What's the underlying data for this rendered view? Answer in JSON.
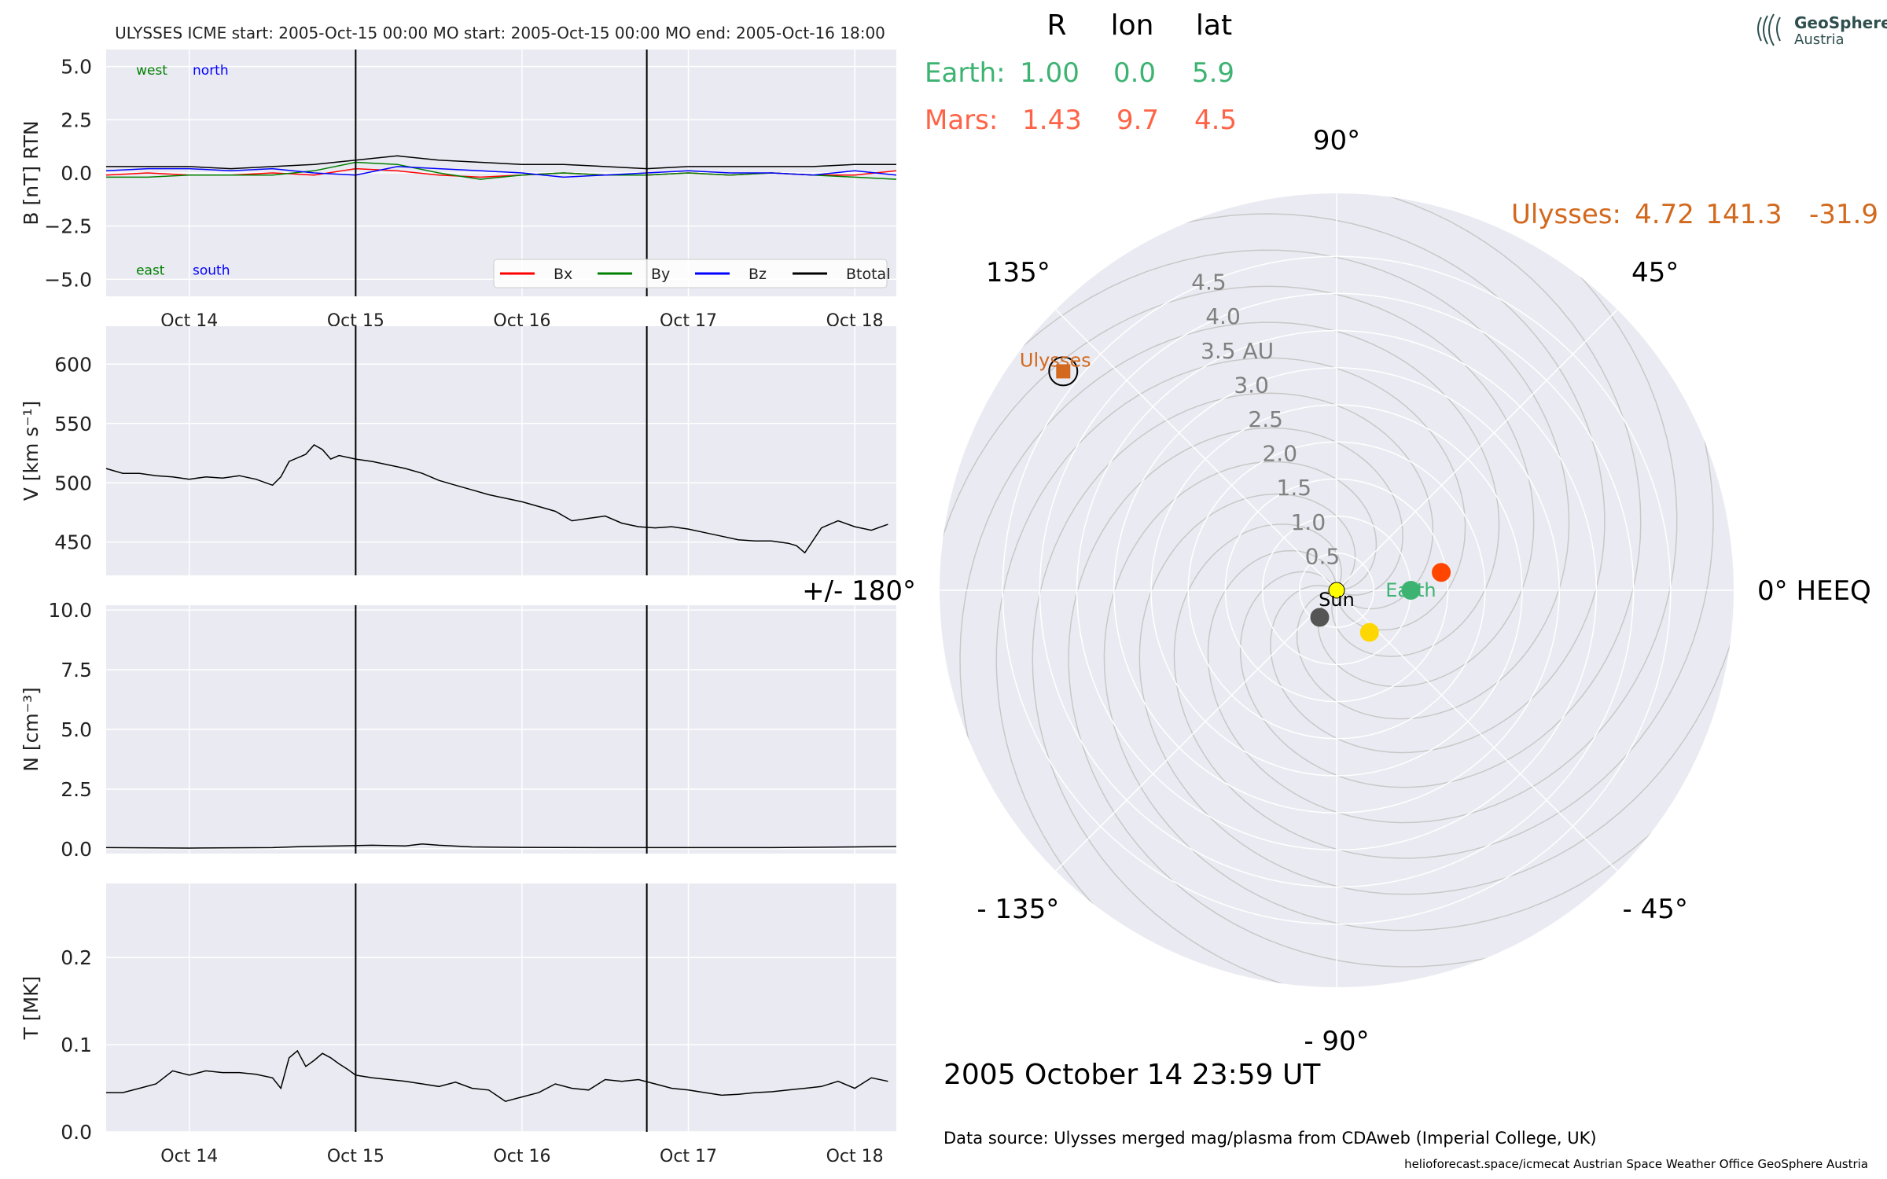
{
  "header": {
    "title": "ULYSSES    ICME start: 2005-Oct-15 00:00   MO start: 2005-Oct-15 00:00   MO end: 2005-Oct-16 18:00"
  },
  "logo": {
    "line1": "GeoSphere",
    "line2": "Austria"
  },
  "position_table": {
    "columns": [
      "R",
      "lon",
      "lat"
    ],
    "rows": [
      {
        "label": "Earth:",
        "R": "1.00",
        "lon": "0.0",
        "lat": "5.9",
        "color": "#3cb371"
      },
      {
        "label": "Mars:",
        "R": "1.43",
        "lon": "9.7",
        "lat": "4.5",
        "color": "#ff6347"
      }
    ],
    "spacecraft": {
      "label": "Ulysses:",
      "R": "4.72",
      "lon": "141.3",
      "lat": "-31.9",
      "color": "#d2691e"
    }
  },
  "timestamp": "2005 October 14  23:59 UT",
  "source": "Data source: Ulysses merged mag/plasma from CDAweb (Imperial College, UK)",
  "footer": "helioforecast.space/icmecat   Austrian Space Weather Office   GeoSphere Austria",
  "colors": {
    "panel_bg": "#eaeaf2",
    "grid": "#ffffff",
    "event_line": "#000000",
    "bx": "#ff0000",
    "by": "#008000",
    "bz": "#0000ff",
    "btotal": "#000000",
    "ulysses": "#d2691e",
    "earth": "#3cb371",
    "mars": "#ff4500",
    "venus": "#ffd700",
    "mercury": "#555555",
    "sun": "#ffff00"
  },
  "chart_data": [
    {
      "type": "line",
      "ylabel": "B [nT] RTN",
      "ylim": [
        -5.8,
        5.8
      ],
      "yticks": [
        5.0,
        2.5,
        0.0,
        -2.5,
        -5.0
      ],
      "ytick_labels": [
        "5.0",
        "2.5",
        "0.0",
        "−2.5",
        "−5.0"
      ],
      "xlim": [
        0,
        4.75
      ],
      "xticks": [
        0.5,
        1.5,
        2.5,
        3.5,
        4.5
      ],
      "xtick_labels": [
        "Oct 14",
        "Oct 15",
        "Oct 16",
        "Oct 17",
        "Oct 18"
      ],
      "event_lines": [
        1.5,
        3.25
      ],
      "annotations": [
        {
          "text": "west",
          "x": 0.18,
          "y": 4.8,
          "color": "#008000"
        },
        {
          "text": "north",
          "x": 0.52,
          "y": 4.8,
          "color": "#0000ff"
        },
        {
          "text": "east",
          "x": 0.18,
          "y": -4.6,
          "color": "#008000"
        },
        {
          "text": "south",
          "x": 0.52,
          "y": -4.6,
          "color": "#0000ff"
        }
      ],
      "legend": {
        "position": "lower-right",
        "entries": [
          "Bx",
          "By",
          "Bz",
          "Btotal"
        ]
      },
      "x": [
        0.0,
        0.25,
        0.5,
        0.75,
        1.0,
        1.25,
        1.5,
        1.75,
        2.0,
        2.25,
        2.5,
        2.75,
        3.0,
        3.25,
        3.5,
        3.75,
        4.0,
        4.25,
        4.5,
        4.75
      ],
      "series": [
        {
          "name": "Bx",
          "values": [
            -0.1,
            0.0,
            -0.1,
            -0.1,
            0.0,
            -0.1,
            0.2,
            0.1,
            -0.1,
            -0.2,
            -0.1,
            0.0,
            -0.1,
            -0.1,
            0.0,
            -0.1,
            0.0,
            -0.1,
            -0.1,
            0.1
          ]
        },
        {
          "name": "By",
          "values": [
            -0.2,
            -0.2,
            -0.1,
            -0.1,
            -0.1,
            0.1,
            0.5,
            0.4,
            0.0,
            -0.3,
            -0.1,
            0.0,
            -0.1,
            -0.1,
            0.0,
            -0.1,
            0.0,
            -0.1,
            -0.2,
            -0.3
          ]
        },
        {
          "name": "Bz",
          "values": [
            0.1,
            0.2,
            0.2,
            0.1,
            0.2,
            0.0,
            -0.1,
            0.3,
            0.2,
            0.1,
            0.0,
            -0.2,
            -0.1,
            0.0,
            0.1,
            0.0,
            0.0,
            -0.1,
            0.1,
            -0.1
          ]
        },
        {
          "name": "Btotal",
          "values": [
            0.3,
            0.3,
            0.3,
            0.2,
            0.3,
            0.4,
            0.6,
            0.8,
            0.6,
            0.5,
            0.4,
            0.4,
            0.3,
            0.2,
            0.3,
            0.3,
            0.3,
            0.3,
            0.4,
            0.4
          ]
        }
      ]
    },
    {
      "type": "line",
      "ylabel": "V [km s⁻¹]",
      "ylim": [
        422,
        632
      ],
      "yticks": [
        600,
        550,
        500,
        450
      ],
      "ytick_labels": [
        "600",
        "550",
        "500",
        "450"
      ],
      "xlim": [
        0,
        4.75
      ],
      "xticks": [
        0.5,
        1.5,
        2.5,
        3.5,
        4.5
      ],
      "event_lines": [
        1.5,
        3.25
      ],
      "x": [
        0.0,
        0.1,
        0.2,
        0.3,
        0.4,
        0.5,
        0.6,
        0.7,
        0.8,
        0.9,
        1.0,
        1.05,
        1.1,
        1.2,
        1.25,
        1.3,
        1.35,
        1.4,
        1.5,
        1.6,
        1.7,
        1.8,
        1.9,
        2.0,
        2.1,
        2.2,
        2.3,
        2.4,
        2.5,
        2.6,
        2.7,
        2.8,
        2.9,
        3.0,
        3.1,
        3.2,
        3.3,
        3.4,
        3.5,
        3.6,
        3.7,
        3.8,
        3.9,
        4.0,
        4.1,
        4.15,
        4.2,
        4.3,
        4.4,
        4.5,
        4.6,
        4.7
      ],
      "series": [
        {
          "name": "V",
          "values": [
            512,
            508,
            508,
            506,
            505,
            503,
            505,
            504,
            506,
            503,
            498,
            505,
            518,
            524,
            532,
            528,
            520,
            523,
            520,
            518,
            515,
            512,
            508,
            502,
            498,
            494,
            490,
            487,
            484,
            480,
            476,
            468,
            470,
            472,
            466,
            463,
            462,
            463,
            461,
            458,
            455,
            452,
            451,
            451,
            449,
            447,
            441,
            462,
            468,
            463,
            460,
            465
          ]
        }
      ]
    },
    {
      "type": "line",
      "ylabel": "N [cm⁻³]",
      "ylim": [
        -0.2,
        10.2
      ],
      "yticks": [
        10.0,
        7.5,
        5.0,
        2.5,
        0.0
      ],
      "ytick_labels": [
        "10.0",
        "7.5",
        "5.0",
        "2.5",
        "0.0"
      ],
      "xlim": [
        0,
        4.75
      ],
      "xticks": [
        0.5,
        1.5,
        2.5,
        3.5,
        4.5
      ],
      "event_lines": [
        1.5,
        3.25
      ],
      "x": [
        0.0,
        0.5,
        1.0,
        1.2,
        1.4,
        1.6,
        1.8,
        1.9,
        2.0,
        2.2,
        2.5,
        3.0,
        3.5,
        4.0,
        4.5,
        4.75
      ],
      "series": [
        {
          "name": "N",
          "values": [
            0.05,
            0.03,
            0.05,
            0.1,
            0.12,
            0.15,
            0.12,
            0.2,
            0.15,
            0.08,
            0.06,
            0.05,
            0.05,
            0.05,
            0.08,
            0.1
          ]
        }
      ]
    },
    {
      "type": "line",
      "ylabel": "T [MK]",
      "ylim": [
        0,
        0.285
      ],
      "yticks": [
        0.2,
        0.1,
        0.0
      ],
      "ytick_labels": [
        "0.2",
        "0.1",
        "0.0"
      ],
      "xlim": [
        0,
        4.75
      ],
      "xticks": [
        0.5,
        1.5,
        2.5,
        3.5,
        4.5
      ],
      "xtick_labels": [
        "Oct 14",
        "Oct 15",
        "Oct 16",
        "Oct 17",
        "Oct 18"
      ],
      "event_lines": [
        1.5,
        3.25
      ],
      "x": [
        0.0,
        0.1,
        0.2,
        0.3,
        0.4,
        0.5,
        0.6,
        0.7,
        0.8,
        0.9,
        1.0,
        1.05,
        1.1,
        1.15,
        1.2,
        1.25,
        1.3,
        1.35,
        1.4,
        1.45,
        1.5,
        1.6,
        1.7,
        1.8,
        1.9,
        2.0,
        2.1,
        2.2,
        2.3,
        2.4,
        2.5,
        2.6,
        2.7,
        2.8,
        2.9,
        3.0,
        3.1,
        3.2,
        3.3,
        3.4,
        3.5,
        3.6,
        3.7,
        3.8,
        3.9,
        4.0,
        4.1,
        4.2,
        4.3,
        4.4,
        4.5,
        4.6,
        4.7
      ],
      "series": [
        {
          "name": "T",
          "values": [
            0.045,
            0.045,
            0.05,
            0.055,
            0.07,
            0.065,
            0.07,
            0.068,
            0.068,
            0.066,
            0.062,
            0.05,
            0.085,
            0.093,
            0.075,
            0.082,
            0.09,
            0.085,
            0.078,
            0.072,
            0.065,
            0.062,
            0.06,
            0.058,
            0.055,
            0.052,
            0.057,
            0.05,
            0.048,
            0.035,
            0.04,
            0.045,
            0.055,
            0.05,
            0.048,
            0.06,
            0.058,
            0.06,
            0.055,
            0.05,
            0.048,
            0.045,
            0.042,
            0.043,
            0.045,
            0.046,
            0.048,
            0.05,
            0.052,
            0.058,
            0.05,
            0.062,
            0.058
          ]
        }
      ]
    },
    {
      "type": "scatter",
      "projection": "polar",
      "rlim": [
        0,
        5.35
      ],
      "r_ticks": [
        0.5,
        1.0,
        1.5,
        2.0,
        2.5,
        3.0,
        3.5,
        4.0,
        4.5
      ],
      "r_tick_labels": [
        "0.5",
        "1.0",
        "1.5",
        "2.0",
        "2.5",
        "3.0",
        "3.5 AU",
        "4.0",
        "4.5"
      ],
      "angle_ticks": [
        0,
        45,
        90,
        135,
        180,
        -135,
        -90,
        -45
      ],
      "angle_labels": [
        "0° HEEQ",
        "45°",
        "90°",
        "135°",
        "+/- 180°",
        "- 135°",
        "- 90°",
        "- 45°"
      ],
      "points": [
        {
          "name": "Ulysses",
          "r": 4.72,
          "lon": 141.3,
          "label": "Ulysses",
          "marker": "square",
          "color": "#d2691e"
        },
        {
          "name": "Earth",
          "r": 1.0,
          "lon": 0.0,
          "label": "Earth",
          "marker": "circle",
          "color": "#3cb371"
        },
        {
          "name": "Mars",
          "r": 1.43,
          "lon": 9.7,
          "label": "",
          "marker": "circle",
          "color": "#ff4500"
        },
        {
          "name": "Venus",
          "r": 0.72,
          "lon": -52.0,
          "label": "",
          "marker": "circle",
          "color": "#ffd700"
        },
        {
          "name": "Mercury",
          "r": 0.43,
          "lon": -122.0,
          "label": "",
          "marker": "circle",
          "color": "#555555"
        },
        {
          "name": "Sun",
          "r": 0.0,
          "lon": 0.0,
          "label": "Sun",
          "marker": "circle",
          "color": "#ffff00"
        }
      ]
    }
  ]
}
